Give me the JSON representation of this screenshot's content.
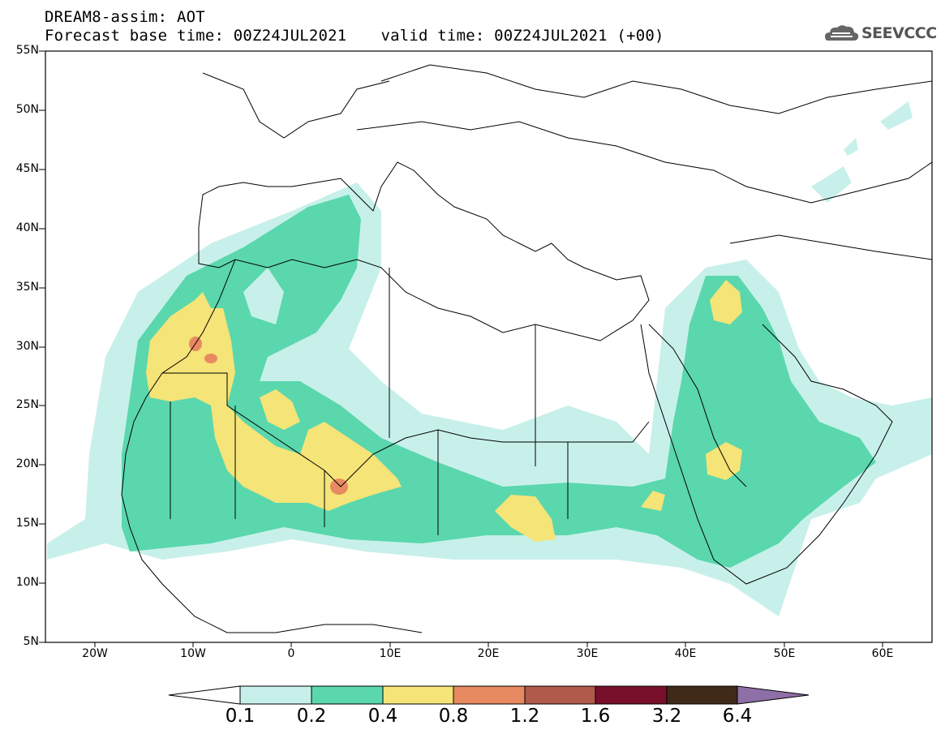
{
  "title": {
    "line1": "DREAM8-assim: AOT",
    "line2_base": "Forecast base time: 00Z24JUL2021",
    "line2_valid": "valid time: 00Z24JUL2021 (+00)"
  },
  "logo": {
    "text": "SEEVCCC",
    "icon": "cloud-logo-icon"
  },
  "map": {
    "lat_ticks": [
      "55N",
      "50N",
      "45N",
      "40N",
      "35N",
      "30N",
      "25N",
      "20N",
      "15N",
      "10N",
      "5N"
    ],
    "lon_ticks": [
      "20W",
      "10W",
      "0",
      "10E",
      "20E",
      "30E",
      "40E",
      "50E",
      "60E"
    ],
    "extent": {
      "lon_min": -25,
      "lon_max": 65,
      "lat_min": 5,
      "lat_max": 55
    },
    "field": "Aerosol Optical Thickness (dust)"
  },
  "colorbar": {
    "labels": [
      "0.1",
      "0.2",
      "0.4",
      "0.8",
      "1.2",
      "1.6",
      "3.2",
      "6.4"
    ],
    "colors": [
      "#c8f0ea",
      "#5ad7ad",
      "#f5e477",
      "#e88a61",
      "#b05a4a",
      "#780f2b",
      "#3f2a19",
      "#8f6fa7"
    ]
  }
}
